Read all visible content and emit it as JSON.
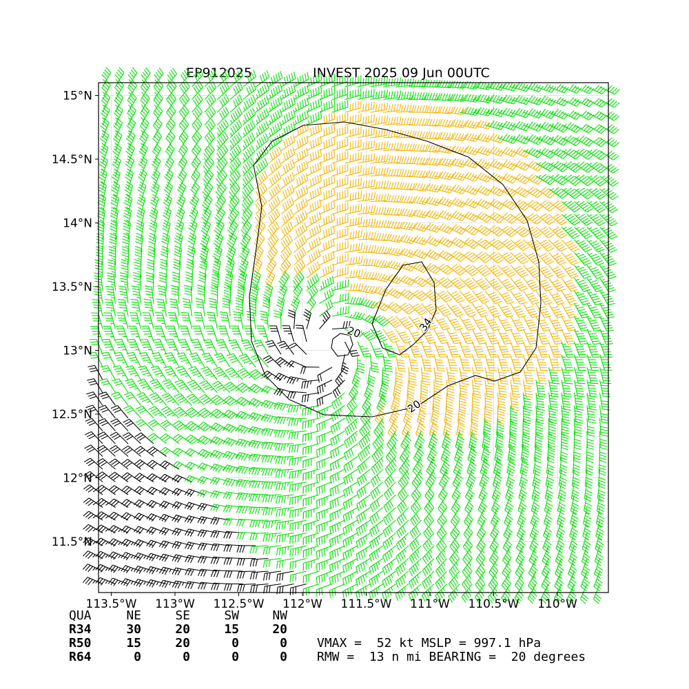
{
  "header": {
    "storm_id": "EP912025",
    "title": "INVEST 2025 09 Jun 00UTC"
  },
  "map": {
    "lon_range": [
      -113.6,
      -109.6
    ],
    "lat_range": [
      11.1,
      15.1
    ],
    "x_ticks": [
      {
        "lon": -113.5,
        "label": "113.5°W"
      },
      {
        "lon": -113.0,
        "label": "113°W"
      },
      {
        "lon": -112.5,
        "label": "112.5°W"
      },
      {
        "lon": -112.0,
        "label": "112°W"
      },
      {
        "lon": -111.5,
        "label": "111.5°W"
      },
      {
        "lon": -111.0,
        "label": "111°W"
      },
      {
        "lon": -110.5,
        "label": "110.5°W"
      },
      {
        "lon": -110.0,
        "label": "110°W"
      }
    ],
    "y_ticks": [
      {
        "lat": 15.0,
        "label": "15°N"
      },
      {
        "lat": 14.5,
        "label": "14.5°N"
      },
      {
        "lat": 14.0,
        "label": "14°N"
      },
      {
        "lat": 13.5,
        "label": "13.5°N"
      },
      {
        "lat": 13.0,
        "label": "13°N"
      },
      {
        "lat": 12.5,
        "label": "12.5°N"
      },
      {
        "lat": 12.0,
        "label": "12°N"
      },
      {
        "lat": 11.5,
        "label": "11.5°N"
      }
    ],
    "grid": true,
    "storm_center": {
      "lon": -111.8,
      "lat": 13.05
    },
    "contours": [
      {
        "level": "20",
        "label": "20",
        "color": "#000000"
      },
      {
        "level": "34",
        "label": "34",
        "color": "#000000"
      }
    ],
    "barb_colors": {
      "below_34kt": "#000000",
      "34_to_50kt": "#00dd00",
      "above_50kt": "#f0b400"
    }
  },
  "radii_table": {
    "columns": [
      "QUA",
      "NE",
      "SE",
      "SW",
      "NW"
    ],
    "rows": [
      {
        "name": "R34",
        "values": [
          "30",
          "20",
          "15",
          "20"
        ]
      },
      {
        "name": "R50",
        "values": [
          "15",
          "20",
          "0",
          "0"
        ]
      },
      {
        "name": "R64",
        "values": [
          "0",
          "0",
          "0",
          "0"
        ]
      }
    ]
  },
  "summary": {
    "line1": "VMAX =  52 kt MSLP = 997.1 hPa",
    "line2": "RMW =  13 n mi BEARING =  20 degrees"
  }
}
